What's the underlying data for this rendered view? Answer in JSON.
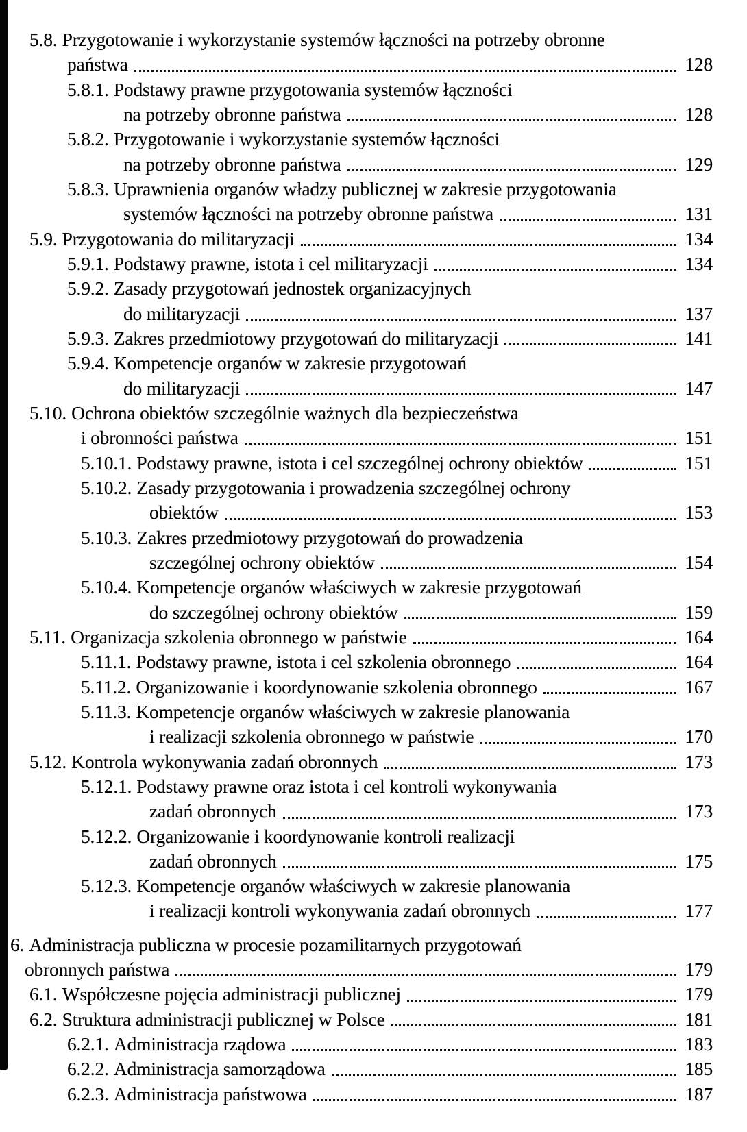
{
  "document": {
    "type": "table-of-contents",
    "language": "pl",
    "text_color": "#050505",
    "background_color": "#ffffff",
    "scan_bar_color": "#060606"
  },
  "toc": {
    "lines": [
      {
        "level": "section",
        "cont": false,
        "num": "5.8.",
        "text": "Przygotowanie i wykorzystanie systemów łączności na potrzeby obronne"
      },
      {
        "level": "section",
        "cont": true,
        "text": "państwa",
        "page": "128"
      },
      {
        "level": "sub",
        "cont": false,
        "num": "5.8.1.",
        "text": "Podstawy prawne przygotowania systemów łączności"
      },
      {
        "level": "sub",
        "cont": true,
        "text": "na potrzeby obronne państwa",
        "page": "128"
      },
      {
        "level": "sub",
        "cont": false,
        "num": "5.8.2.",
        "text": "Przygotowanie i wykorzystanie systemów łączności"
      },
      {
        "level": "sub",
        "cont": true,
        "text": "na potrzeby obronne państwa",
        "page": "129"
      },
      {
        "level": "sub",
        "cont": false,
        "num": "5.8.3.",
        "text": "Uprawnienia organów władzy publicznej w zakresie przygotowania"
      },
      {
        "level": "sub",
        "cont": true,
        "text": "systemów łączności na potrzeby obronne państwa",
        "page": "131"
      },
      {
        "level": "section",
        "cont": false,
        "num": "5.9.",
        "text": "Przygotowania do militaryzacji",
        "page": "134"
      },
      {
        "level": "sub",
        "cont": false,
        "num": "5.9.1.",
        "text": "Podstawy prawne, istota i cel militaryzacji",
        "page": "134"
      },
      {
        "level": "sub",
        "cont": false,
        "num": "5.9.2.",
        "text": "Zasady przygotowań jednostek organizacyjnych"
      },
      {
        "level": "sub",
        "cont": true,
        "text": "do militaryzacji",
        "page": "137"
      },
      {
        "level": "sub",
        "cont": false,
        "num": "5.9.3.",
        "text": "Zakres przedmiotowy przygotowań do militaryzacji",
        "page": "141"
      },
      {
        "level": "sub",
        "cont": false,
        "num": "5.9.4.",
        "text": "Kompetencje organów w zakresie przygotowań"
      },
      {
        "level": "sub",
        "cont": true,
        "text": "do militaryzacji",
        "page": "147"
      },
      {
        "level": "section-wide",
        "cont": false,
        "num": "5.10.",
        "text": "Ochrona obiektów szczególnie ważnych dla bezpieczeństwa"
      },
      {
        "level": "section-wide",
        "cont": true,
        "text": "i obronności państwa",
        "page": "151"
      },
      {
        "level": "sub-wide",
        "cont": false,
        "num": "5.10.1.",
        "text": "Podstawy prawne, istota i cel szczególnej ochrony obiektów",
        "page": "151"
      },
      {
        "level": "sub-wide",
        "cont": false,
        "num": "5.10.2.",
        "text": "Zasady przygotowania i prowadzenia szczególnej ochrony"
      },
      {
        "level": "sub-wide",
        "cont": true,
        "text": "obiektów",
        "page": "153"
      },
      {
        "level": "sub-wide",
        "cont": false,
        "num": "5.10.3.",
        "text": "Zakres przedmiotowy przygotowań do prowadzenia"
      },
      {
        "level": "sub-wide",
        "cont": true,
        "text": "szczególnej ochrony obiektów",
        "page": "154"
      },
      {
        "level": "sub-wide",
        "cont": false,
        "num": "5.10.4.",
        "text": "Kompetencje organów właściwych w zakresie przygotowań"
      },
      {
        "level": "sub-wide",
        "cont": true,
        "text": "do szczególnej ochrony obiektów",
        "page": "159"
      },
      {
        "level": "section-wide",
        "cont": false,
        "num": "5.11.",
        "text": "Organizacja szkolenia obronnego w państwie",
        "page": "164"
      },
      {
        "level": "sub-wide",
        "cont": false,
        "num": "5.11.1.",
        "text": "Podstawy prawne, istota i cel szkolenia obronnego",
        "page": "164"
      },
      {
        "level": "sub-wide",
        "cont": false,
        "num": "5.11.2.",
        "text": "Organizowanie i koordynowanie szkolenia obronnego",
        "page": "167"
      },
      {
        "level": "sub-wide",
        "cont": false,
        "num": "5.11.3.",
        "text": "Kompetencje organów właściwych w zakresie planowania"
      },
      {
        "level": "sub-wide",
        "cont": true,
        "text": "i realizacji szkolenia obronnego w państwie",
        "page": "170"
      },
      {
        "level": "section-wide",
        "cont": false,
        "num": "5.12.",
        "text": "Kontrola wykonywania zadań obronnych",
        "page": "173"
      },
      {
        "level": "sub-wide",
        "cont": false,
        "num": "5.12.1.",
        "text": "Podstawy prawne oraz istota i cel kontroli wykonywania"
      },
      {
        "level": "sub-wide",
        "cont": true,
        "text": "zadań obronnych",
        "page": "173"
      },
      {
        "level": "sub-wide",
        "cont": false,
        "num": "5.12.2.",
        "text": "Organizowanie i koordynowanie kontroli realizacji"
      },
      {
        "level": "sub-wide",
        "cont": true,
        "text": "zadań obronnych",
        "page": "175"
      },
      {
        "level": "sub-wide",
        "cont": false,
        "num": "5.12.3.",
        "text": "Kompetencje organów właściwych w zakresie planowania"
      },
      {
        "level": "sub-wide",
        "cont": true,
        "text": "i realizacji kontroli wykonywania zadań obronnych",
        "page": "177"
      },
      {
        "level": "chapter",
        "cont": false,
        "gap_before": true,
        "num": "6.",
        "text": "Administracja publiczna w procesie pozamilitarnych przygotowań"
      },
      {
        "level": "chapter",
        "cont": true,
        "text": "obronnych państwa",
        "page": "179"
      },
      {
        "level": "section",
        "cont": false,
        "num": "6.1.",
        "text": "Współczesne pojęcia administracji publicznej",
        "page": "179"
      },
      {
        "level": "section",
        "cont": false,
        "num": "6.2.",
        "text": "Struktura administracji publicznej w Polsce",
        "page": "181"
      },
      {
        "level": "sub",
        "cont": false,
        "num": "6.2.1.",
        "text": "Administracja rządowa",
        "page": "183"
      },
      {
        "level": "sub",
        "cont": false,
        "num": "6.2.2.",
        "text": "Administracja samorządowa",
        "page": "185"
      },
      {
        "level": "sub",
        "cont": false,
        "num": "6.2.3.",
        "text": "Administracja państwowa",
        "page": "187"
      }
    ]
  }
}
